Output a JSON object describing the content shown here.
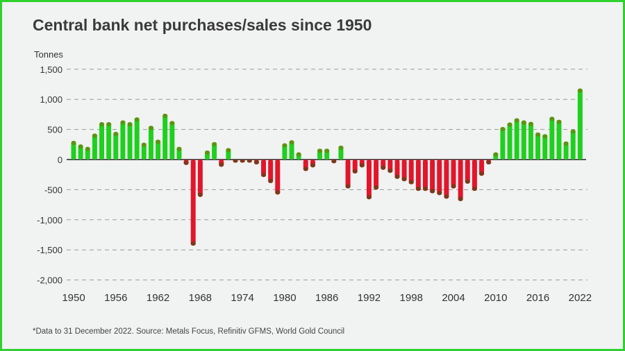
{
  "title": "Central bank net purchases/sales since 1950",
  "footnote": "*Data to 31 December 2022. Source: Metals Focus, Refinitiv GFMS, World Gold Council",
  "colors": {
    "positive": "#1fd01f",
    "positive_tip": "#5c9410",
    "negative": "#e3152b",
    "negative_tip": "#7a3a1a",
    "border": "#2fd12f"
  },
  "chart_data": {
    "type": "bar",
    "title": "Central bank net purchases/sales since 1950",
    "ylabel": "Tonnes",
    "xlabel": "",
    "ylim": [
      -2000,
      1500
    ],
    "yticks": [
      1500,
      1000,
      500,
      0,
      -500,
      -1000,
      -1500,
      -2000
    ],
    "ytick_labels": [
      "1,500",
      "1,000",
      "500",
      "0",
      "-500",
      "-1,000",
      "-1,500",
      "-2,000"
    ],
    "xtick_labels": [
      "1950",
      "1956",
      "1962",
      "1968",
      "1974",
      "1980",
      "1986",
      "1992",
      "1998",
      "2004",
      "2010",
      "2016",
      "2022"
    ],
    "grid": true,
    "x": [
      1950,
      1951,
      1952,
      1953,
      1954,
      1955,
      1956,
      1957,
      1958,
      1959,
      1960,
      1961,
      1962,
      1963,
      1964,
      1965,
      1966,
      1967,
      1968,
      1969,
      1970,
      1971,
      1972,
      1973,
      1974,
      1975,
      1976,
      1977,
      1978,
      1979,
      1980,
      1981,
      1982,
      1983,
      1984,
      1985,
      1986,
      1987,
      1988,
      1989,
      1990,
      1991,
      1992,
      1993,
      1994,
      1995,
      1996,
      1997,
      1998,
      1999,
      2000,
      2001,
      2002,
      2003,
      2004,
      2005,
      2006,
      2007,
      2008,
      2009,
      2010,
      2011,
      2012,
      2013,
      2014,
      2015,
      2016,
      2017,
      2018,
      2019,
      2020,
      2021,
      2022
    ],
    "values": [
      310,
      250,
      210,
      430,
      620,
      620,
      460,
      650,
      620,
      700,
      280,
      560,
      330,
      760,
      640,
      210,
      -90,
      -1430,
      -620,
      150,
      290,
      -120,
      190,
      -50,
      -50,
      -50,
      -80,
      -290,
      -390,
      -580,
      270,
      320,
      120,
      -190,
      -130,
      180,
      180,
      -60,
      230,
      -480,
      -230,
      -130,
      -660,
      -500,
      -170,
      -220,
      -320,
      -360,
      -410,
      -520,
      -520,
      -560,
      -590,
      -650,
      -480,
      -690,
      -400,
      -520,
      -270,
      -80,
      120,
      540,
      615,
      685,
      650,
      625,
      450,
      420,
      710,
      660,
      300,
      500,
      1180
    ]
  }
}
